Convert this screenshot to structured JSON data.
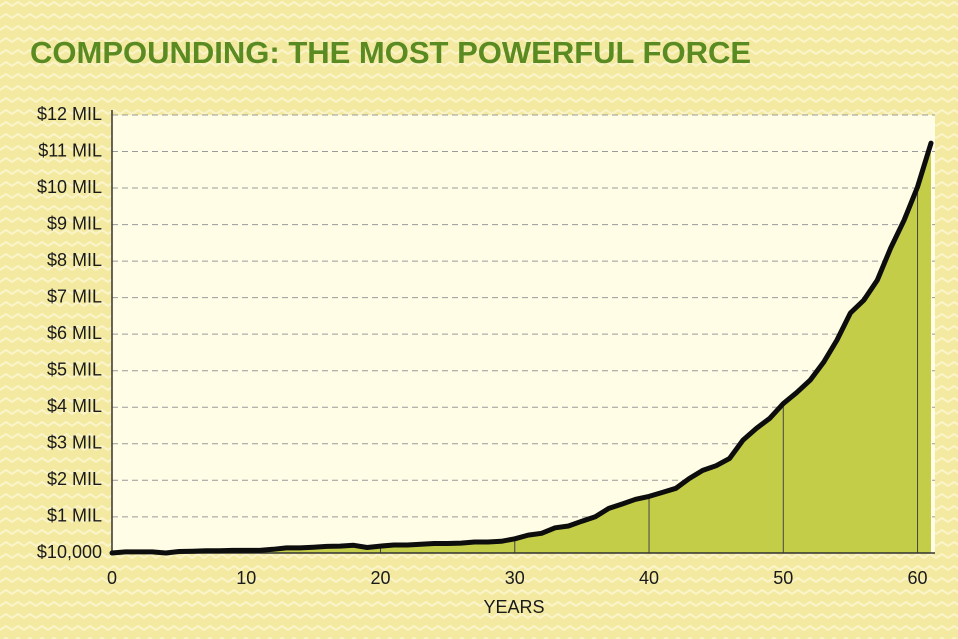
{
  "chart_data": {
    "type": "area",
    "title": "COMPOUNDING: THE MOST POWERFUL FORCE",
    "xlabel": "YEARS",
    "x": [
      0,
      1,
      2,
      3,
      4,
      5,
      6,
      7,
      8,
      9,
      10,
      11,
      12,
      13,
      14,
      15,
      16,
      17,
      18,
      19,
      20,
      21,
      22,
      23,
      24,
      25,
      26,
      27,
      28,
      29,
      30,
      31,
      32,
      33,
      34,
      35,
      36,
      37,
      38,
      39,
      40,
      41,
      42,
      43,
      44,
      45,
      46,
      47,
      48,
      49,
      50,
      51,
      52,
      53,
      54,
      55,
      56,
      57,
      58,
      59,
      60,
      61
    ],
    "values": [
      10000,
      40000,
      40000,
      40000,
      10000,
      50000,
      60000,
      70000,
      70000,
      80000,
      80000,
      80000,
      110000,
      150000,
      150000,
      170000,
      190000,
      200000,
      220000,
      160000,
      200000,
      230000,
      230000,
      250000,
      270000,
      270000,
      280000,
      310000,
      310000,
      330000,
      400000,
      500000,
      550000,
      700000,
      750000,
      880000,
      1000000,
      1230000,
      1350000,
      1480000,
      1560000,
      1670000,
      1780000,
      2050000,
      2270000,
      2400000,
      2600000,
      3100000,
      3420000,
      3700000,
      4100000,
      4400000,
      4740000,
      5230000,
      5840000,
      6580000,
      6930000,
      7480000,
      8360000,
      9120000,
      10030000,
      11230000
    ],
    "line_color": "#0d0d0d",
    "fill_color": "#c3cd48",
    "xlim": [
      0,
      61.3
    ],
    "xticks": [
      0,
      10,
      20,
      30,
      40,
      50,
      60
    ],
    "ylim": [
      10000,
      12000000
    ],
    "yticks": [
      {
        "value": 10000,
        "label": "$10,000"
      },
      {
        "value": 1000000,
        "label": "$1 MIL"
      },
      {
        "value": 2000000,
        "label": "$2 MIL"
      },
      {
        "value": 3000000,
        "label": "$3 MIL"
      },
      {
        "value": 4000000,
        "label": "$4 MIL"
      },
      {
        "value": 5000000,
        "label": "$5 MIL"
      },
      {
        "value": 6000000,
        "label": "$6 MIL"
      },
      {
        "value": 7000000,
        "label": "$7 MIL"
      },
      {
        "value": 8000000,
        "label": "$8 MIL"
      },
      {
        "value": 9000000,
        "label": "$9 MIL"
      },
      {
        "value": 10000000,
        "label": "$10 MIL"
      },
      {
        "value": 11000000,
        "label": "$11 MIL"
      },
      {
        "value": 12000000,
        "label": "$12 MIL"
      }
    ],
    "grid": true
  }
}
